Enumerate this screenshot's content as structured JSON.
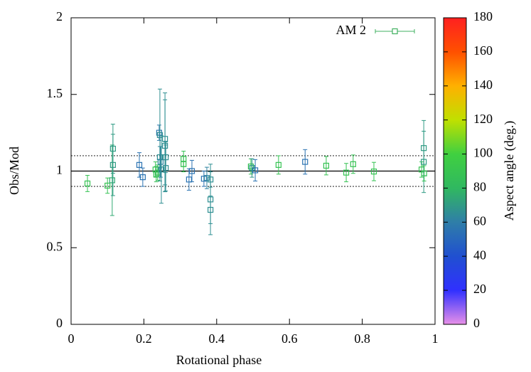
{
  "chart_data": {
    "type": "errorbar_scatter",
    "xlabel": "Rotational phase",
    "ylabel": "Obs/Mod",
    "colorbar_label": "Aspect angle (deg.)",
    "xlim": [
      0,
      1
    ],
    "xticks": [
      0,
      0.2,
      0.4,
      0.6,
      0.8,
      1
    ],
    "ylim": [
      0,
      2
    ],
    "yticks": [
      0,
      0.5,
      1,
      1.5,
      2
    ],
    "clim": [
      0,
      180
    ],
    "cticks": [
      0,
      20,
      40,
      60,
      80,
      100,
      120,
      140,
      160,
      180
    ],
    "colormap": [
      "#e890e8",
      "#3030ff",
      "#2050d0",
      "#2f7ea8",
      "#30b860",
      "#40d040",
      "#c0e000",
      "#ffb000",
      "#ff5000",
      "#ff2020"
    ],
    "reference_lines": [
      {
        "y": 1,
        "style": "solid"
      },
      {
        "y": 0.9,
        "style": "dotted"
      },
      {
        "y": 1.1,
        "style": "dotted"
      }
    ],
    "series": [
      {
        "name": "AM 2",
        "color": "#40b060",
        "x": [
          0.045,
          0.1,
          0.113,
          0.115,
          0.115,
          0.1875,
          0.197,
          0.232,
          0.234,
          0.238,
          0.242,
          0.244,
          0.244,
          0.246,
          0.248,
          0.258,
          0.258,
          0.26,
          0.26,
          0.309,
          0.309,
          0.324,
          0.332,
          0.365,
          0.373,
          0.383,
          0.383,
          0.383,
          0.494,
          0.497,
          0.506,
          0.57,
          0.643,
          0.701,
          0.756,
          0.775,
          0.832,
          0.963,
          0.969,
          0.969,
          0.97
        ],
        "values": [
          0.919,
          0.905,
          0.94,
          1.146,
          1.04,
          1.04,
          0.96,
          1.01,
          0.98,
          0.99,
          1.25,
          1.235,
          1.09,
          1.06,
          1.01,
          1.21,
          1.165,
          1.09,
          1.02,
          1.08,
          1.045,
          0.945,
          1.0,
          0.95,
          0.955,
          0.945,
          0.815,
          0.747,
          1.03,
          1.02,
          1.005,
          1.04,
          1.06,
          1.035,
          0.99,
          1.045,
          0.997,
          1.01,
          1.15,
          1.06,
          0.985
        ],
        "errors": [
          0.053,
          0.05,
          0.23,
          0.16,
          0.2,
          0.08,
          0.06,
          0.05,
          0.05,
          0.05,
          0.05,
          0.3,
          0.07,
          0.1,
          0.22,
          0.3,
          0.3,
          0.1,
          0.15,
          0.05,
          0.05,
          0.07,
          0.07,
          0.05,
          0.07,
          0.05,
          0.23,
          0.09,
          0.05,
          0.06,
          0.07,
          0.06,
          0.08,
          0.06,
          0.06,
          0.06,
          0.06,
          0.05,
          0.18,
          0.2,
          0.05
        ],
        "aspect": [
          88,
          88,
          75,
          70,
          70,
          55,
          55,
          88,
          86,
          86,
          58,
          66,
          66,
          62,
          66,
          66,
          66,
          66,
          66,
          88,
          88,
          55,
          55,
          55,
          62,
          66,
          66,
          66,
          88,
          68,
          55,
          88,
          55,
          88,
          88,
          88,
          88,
          88,
          70,
          70,
          88
        ]
      }
    ]
  }
}
